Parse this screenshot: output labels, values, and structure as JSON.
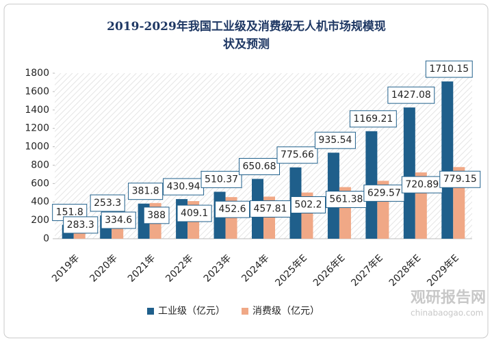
{
  "chart_data": {
    "type": "bar",
    "title": "2019-2029年我国工业级及消费级无人机市场规模现状及预测",
    "categories": [
      "2019年",
      "2020年",
      "2021年",
      "2022年",
      "2023年",
      "2024年",
      "2025年E",
      "2026年E",
      "2027年E",
      "2028年E",
      "2029年E"
    ],
    "series": [
      {
        "name": "工业级（亿元）",
        "color": "#1f5f8b",
        "values": [
          151.8,
          253.3,
          381.8,
          430.94,
          510.37,
          650.68,
          775.66,
          935.54,
          1169.21,
          1427.08,
          1710.15
        ]
      },
      {
        "name": "消费级（亿元）",
        "color": "#f0a886",
        "values": [
          283.3,
          334.6,
          388,
          409.1,
          452.6,
          457.81,
          502.2,
          561.38,
          629.57,
          720.89,
          779.15
        ]
      }
    ],
    "ylim": [
      0,
      1800
    ],
    "yticks": [
      0,
      200,
      400,
      600,
      800,
      1000,
      1200,
      1400,
      1600,
      1800
    ],
    "grid": false,
    "legend": "bottom"
  },
  "watermark": {
    "brand": "观研报告网",
    "url": "chinabaogao.com"
  }
}
